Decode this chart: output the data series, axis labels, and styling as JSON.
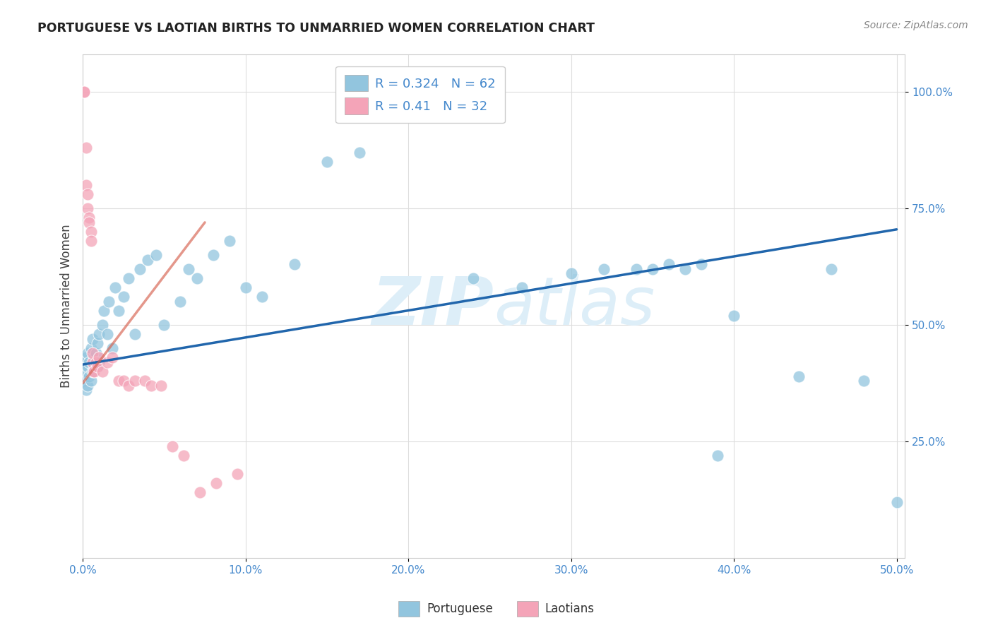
{
  "title": "PORTUGUESE VS LAOTIAN BIRTHS TO UNMARRIED WOMEN CORRELATION CHART",
  "source": "Source: ZipAtlas.com",
  "ylabel": "Births to Unmarried Women",
  "blue_color": "#92c5de",
  "pink_color": "#f4a4b8",
  "blue_line_color": "#2166ac",
  "pink_line_color": "#d6604d",
  "watermark_color": "#ddeef8",
  "tick_color": "#4488cc",
  "title_color": "#222222",
  "grid_color": "#dddddd",
  "blue_R": 0.324,
  "blue_N": 62,
  "pink_R": 0.41,
  "pink_N": 32,
  "blue_line_x0": 0.0,
  "blue_line_x1": 0.5,
  "blue_line_y0": 0.415,
  "blue_line_y1": 0.705,
  "pink_line_x0": 0.0,
  "pink_line_x1": 0.075,
  "pink_line_y0": 0.375,
  "pink_line_y1": 0.72,
  "xlim": [
    0.0,
    0.505
  ],
  "ylim": [
    0.0,
    1.08
  ],
  "xticks": [
    0.0,
    0.1,
    0.2,
    0.3,
    0.4,
    0.5
  ],
  "yticks": [
    0.25,
    0.5,
    0.75,
    1.0
  ],
  "blue_x": [
    0.001,
    0.001,
    0.002,
    0.002,
    0.002,
    0.003,
    0.003,
    0.003,
    0.004,
    0.004,
    0.005,
    0.005,
    0.006,
    0.006,
    0.007,
    0.007,
    0.008,
    0.009,
    0.009,
    0.01,
    0.01,
    0.012,
    0.013,
    0.015,
    0.016,
    0.018,
    0.02,
    0.022,
    0.025,
    0.028,
    0.032,
    0.035,
    0.04,
    0.045,
    0.05,
    0.06,
    0.065,
    0.07,
    0.08,
    0.09,
    0.1,
    0.11,
    0.13,
    0.15,
    0.17,
    0.19,
    0.22,
    0.24,
    0.27,
    0.3,
    0.32,
    0.34,
    0.35,
    0.36,
    0.37,
    0.38,
    0.39,
    0.4,
    0.44,
    0.46,
    0.48,
    0.5
  ],
  "blue_y": [
    0.42,
    0.38,
    0.4,
    0.36,
    0.43,
    0.37,
    0.41,
    0.44,
    0.39,
    0.42,
    0.45,
    0.38,
    0.4,
    0.47,
    0.41,
    0.43,
    0.44,
    0.46,
    0.41,
    0.48,
    0.42,
    0.5,
    0.53,
    0.48,
    0.55,
    0.45,
    0.58,
    0.53,
    0.56,
    0.6,
    0.48,
    0.62,
    0.64,
    0.65,
    0.5,
    0.55,
    0.62,
    0.6,
    0.65,
    0.68,
    0.58,
    0.56,
    0.63,
    0.85,
    0.87,
    1.0,
    1.0,
    0.6,
    0.58,
    0.61,
    0.62,
    0.62,
    0.62,
    0.63,
    0.62,
    0.63,
    0.22,
    0.52,
    0.39,
    0.62,
    0.38,
    0.12
  ],
  "pink_x": [
    0.001,
    0.001,
    0.002,
    0.002,
    0.003,
    0.003,
    0.004,
    0.004,
    0.005,
    0.005,
    0.006,
    0.006,
    0.007,
    0.007,
    0.008,
    0.009,
    0.01,
    0.012,
    0.015,
    0.018,
    0.022,
    0.025,
    0.028,
    0.032,
    0.038,
    0.042,
    0.048,
    0.055,
    0.062,
    0.072,
    0.082,
    0.095
  ],
  "pink_y": [
    1.0,
    1.0,
    0.88,
    0.8,
    0.78,
    0.75,
    0.73,
    0.72,
    0.7,
    0.68,
    0.42,
    0.44,
    0.4,
    0.4,
    0.42,
    0.41,
    0.43,
    0.4,
    0.42,
    0.43,
    0.38,
    0.38,
    0.37,
    0.38,
    0.38,
    0.37,
    0.37,
    0.24,
    0.22,
    0.14,
    0.16,
    0.18
  ]
}
